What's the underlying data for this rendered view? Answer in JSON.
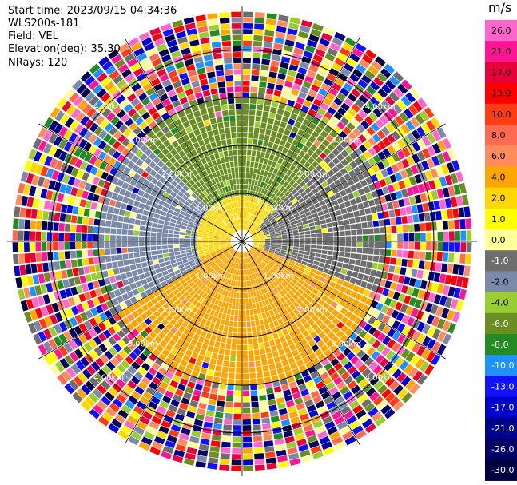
{
  "header": {
    "start_time": "Start time: 2023/09/15 04:34:36",
    "site": "WLS200s-181",
    "field": "Field: VEL",
    "elevation": "Elevation(deg): 35.30",
    "nrays": "NRays: 120"
  },
  "chart_data": {
    "type": "ppi",
    "field": "VEL",
    "units": "m/s",
    "nrays": 120,
    "range_rings_km": [
      1,
      2,
      3,
      4
    ],
    "ring_labels": [
      "1.00km",
      "2.00km",
      "3.00km",
      "4.00km"
    ],
    "max_range_km": 4.9,
    "colorbar": {
      "label": "m/s",
      "levels": [
        26,
        21,
        17,
        13,
        10,
        8,
        6,
        4,
        2,
        1,
        0,
        -1,
        -2,
        -4,
        -6,
        -8,
        -10,
        -13,
        -17,
        -21,
        -26,
        -30
      ],
      "tick_labels": [
        "26.0",
        "21.0",
        "17.0",
        "13.0",
        "10.0",
        "8.0",
        "6.0",
        "4.0",
        "2.0",
        "1.0",
        "0.0",
        "-1.0",
        "-2.0",
        "-4.0",
        "-6.0",
        "-8.0",
        "-10.0",
        "-13.0",
        "-17.0",
        "-21.0",
        "-26.0",
        "-30.0"
      ],
      "colors": [
        "#ff66cc",
        "#ff1493",
        "#e8003a",
        "#ff0000",
        "#ff3c14",
        "#ff6a50",
        "#ff8c5a",
        "#ffa500",
        "#ffd700",
        "#ffff00",
        "#ffff99",
        "#6e6e6e",
        "#7a8aa8",
        "#9acd32",
        "#6b8e23",
        "#228b22",
        "#1e90ff",
        "#1111ff",
        "#0000cd",
        "#00008b",
        "#000066",
        "#000040"
      ]
    },
    "velocity_pattern": [
      {
        "sector_deg": [
          315,
          45
        ],
        "range_km": [
          1.0,
          3.0
        ],
        "velocity_ms": -6
      },
      {
        "sector_deg": [
          240,
          315
        ],
        "range_km": [
          1.0,
          3.0
        ],
        "velocity_ms": -2
      },
      {
        "sector_deg": [
          45,
          110
        ],
        "range_km": [
          0.5,
          3.0
        ],
        "velocity_ms": -1
      },
      {
        "sector_deg": [
          110,
          250
        ],
        "range_km": [
          0.3,
          3.0
        ],
        "velocity_ms": 4
      },
      {
        "sector_deg": [
          250,
          300
        ],
        "range_km": [
          0.0,
          2.8
        ],
        "velocity_ms": 2
      },
      {
        "sector_deg": [
          0,
          360
        ],
        "range_km": [
          3.0,
          4.9
        ],
        "velocity_ms": "noise"
      }
    ]
  }
}
